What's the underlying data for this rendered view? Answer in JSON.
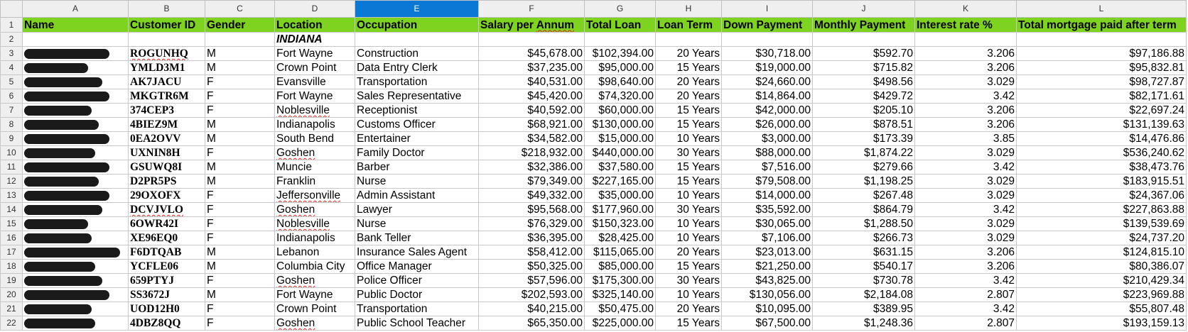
{
  "columns": [
    "A",
    "B",
    "C",
    "D",
    "E",
    "F",
    "G",
    "H",
    "I",
    "J",
    "K",
    "L"
  ],
  "selected_column": "E",
  "header_color": "#7ed321",
  "headers": [
    "Name",
    "Customer ID",
    "Gender",
    "Location",
    "Occupation",
    "Salary per Annum",
    "Total Loan",
    "Loan Term",
    "Down Payment",
    "Monthly Payment",
    "Interest rate %",
    "Total mortgage paid after term"
  ],
  "state_label": "INDIANA",
  "rows": [
    [
      "",
      "ROGUNHQ",
      "M",
      "Fort Wayne",
      "Construction",
      "$45,678.00",
      "$102,394.00",
      "20 Years",
      "$30,718.00",
      "$592.70",
      "3.206",
      "$97,186.88"
    ],
    [
      "",
      "YMLD3M1",
      "M",
      "Crown Point",
      "Data Entry Clerk",
      "$37,235.00",
      "$95,000.00",
      "15 Years",
      "$19,000.00",
      "$715.82",
      "3.206",
      "$95,832.81"
    ],
    [
      "",
      "AK7JACU",
      "F",
      "Evansville",
      "Transportation",
      "$40,531.00",
      "$98,640.00",
      "20 Years",
      "$24,660.00",
      "$498.56",
      "3.029",
      "$98,727.87"
    ],
    [
      "",
      "MKGTR6M",
      "F",
      "Fort Wayne",
      "Sales Representative",
      "$45,420.00",
      "$74,320.00",
      "20 Years",
      "$14,864.00",
      "$429.72",
      "3.42",
      "$82,171.61"
    ],
    [
      "",
      "374CEP3",
      "F",
      "Noblesville",
      "Receptionist",
      "$40,592.00",
      "$60,000.00",
      "15 Years",
      "$42,000.00",
      "$205.10",
      "3.206",
      "$22,697.24"
    ],
    [
      "",
      "4BIEZ9M",
      "M",
      "Indianapolis",
      "Customs Officer",
      "$68,921.00",
      "$130,000.00",
      "15 Years",
      "$26,000.00",
      "$878.51",
      "3.206",
      "$131,139.63"
    ],
    [
      "",
      "0EA2OVV",
      "M",
      "South Bend",
      "Entertainer",
      "$34,582.00",
      "$15,000.00",
      "10 Years",
      "$3,000.00",
      "$173.39",
      "3.85",
      "$14,476.86"
    ],
    [
      "",
      "UXNIN8H",
      "F",
      "Goshen",
      "Family Doctor",
      "$218,932.00",
      "$440,000.00",
      "30 Years",
      "$88,000.00",
      "$1,874.22",
      "3.029",
      "$536,240.62"
    ],
    [
      "",
      "GSUWQ8I",
      "M",
      "Muncie",
      "Barber",
      "$32,386.00",
      "$37,580.00",
      "15 Years",
      "$7,516.00",
      "$279.66",
      "3.42",
      "$38,473.76"
    ],
    [
      "",
      "D2PR5PS",
      "M",
      "Franklin",
      "Nurse",
      "$79,349.00",
      "$227,165.00",
      "15 Years",
      "$79,508.00",
      "$1,198.25",
      "3.029",
      "$183,915.51"
    ],
    [
      "",
      "29OXOFX",
      "F",
      "Jeffersonville",
      "Admin Assistant",
      "$49,332.00",
      "$35,000.00",
      "10 Years",
      "$14,000.00",
      "$267.48",
      "3.029",
      "$24,367.06"
    ],
    [
      "",
      "DCVJVLO",
      "F",
      "Goshen",
      "Lawyer",
      "$95,568.00",
      "$177,960.00",
      "30 Years",
      "$35,592.00",
      "$864.79",
      "3.42",
      "$227,863.88"
    ],
    [
      "",
      "6OWR42I",
      "F",
      "Noblesville",
      "Nurse",
      "$76,329.00",
      "$150,323.00",
      "10 Years",
      "$30,065.00",
      "$1,288.50",
      "3.029",
      "$139,539.69"
    ],
    [
      "",
      "XE96EQ0",
      "F",
      "Indianapolis",
      "Bank Teller",
      "$36,395.00",
      "$28,425.00",
      "10 Years",
      "$7,106.00",
      "$266.73",
      "3.029",
      "$24,737.20"
    ],
    [
      "",
      "F6DTQAB",
      "M",
      "Lebanon",
      "Insurance Sales Agent",
      "$58,412.00",
      "$115,065.00",
      "20 Years",
      "$23,013.00",
      "$631.15",
      "3.206",
      "$124,815.10"
    ],
    [
      "",
      "YCFLE06",
      "M",
      "Columbia City",
      "Office Manager",
      "$50,325.00",
      "$85,000.00",
      "15 Years",
      "$21,250.00",
      "$540.17",
      "3.206",
      "$80,386.07"
    ],
    [
      "",
      "659PTYJ",
      "F",
      "Goshen",
      "Police Officer",
      "$57,596.00",
      "$175,300.00",
      "30 Years",
      "$43,825.00",
      "$730.78",
      "3.42",
      "$210,429.34"
    ],
    [
      "",
      "SS3672J",
      "M",
      "Fort Wayne",
      "Public Doctor",
      "$202,593.00",
      "$325,140.00",
      "10 Years",
      "$130,056.00",
      "$2,184.08",
      "2.807",
      "$223,969.88"
    ],
    [
      "",
      "UOD12H0",
      "F",
      "Crown Point",
      "Transportation",
      "$40,215.00",
      "$50,475.00",
      "20 Years",
      "$10,095.00",
      "$389.95",
      "3.42",
      "$55,807.48"
    ],
    [
      "",
      "4DBZ8QQ",
      "F",
      "Goshen",
      "Public School Teacher",
      "$65,350.00",
      "$225,000.00",
      "15 Years",
      "$67,500.00",
      "$1,248.36",
      "2.807",
      "$193,159.13"
    ]
  ]
}
